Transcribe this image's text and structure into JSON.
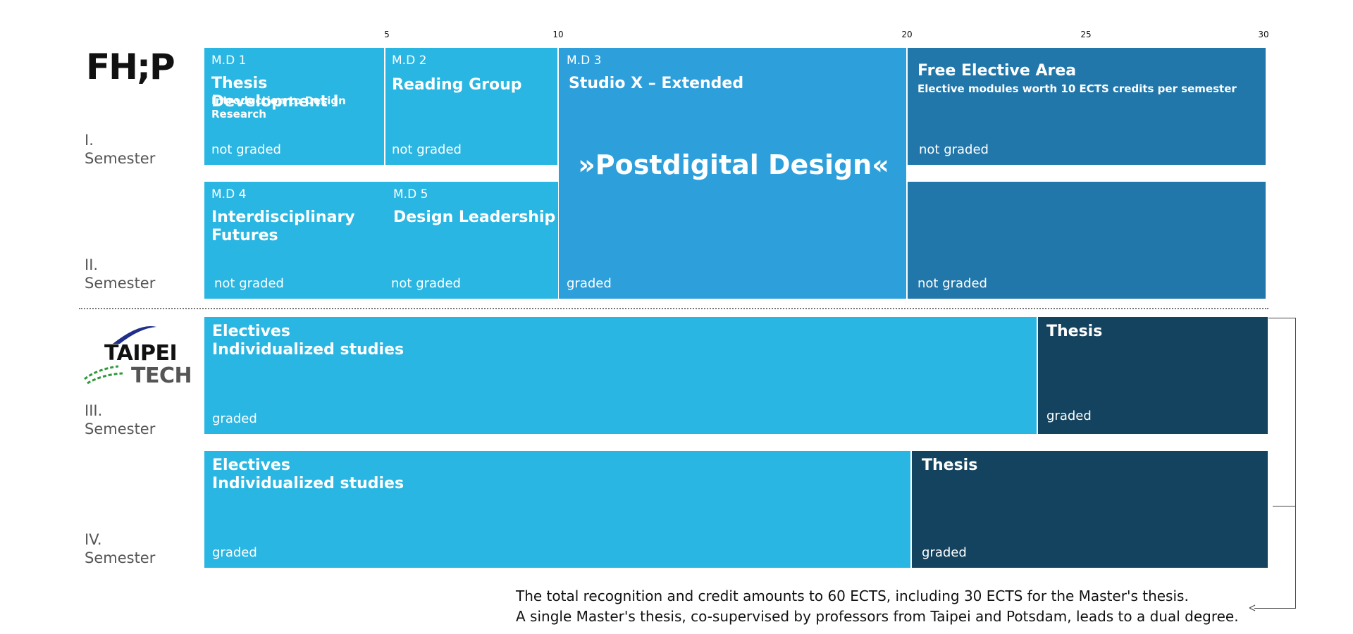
{
  "scale_ticks": [
    "5",
    "10",
    "20",
    "25",
    "30"
  ],
  "logos": {
    "fhp": "FH;P",
    "taipei_line1": "TAIPEI",
    "taipei_line2": "TECH"
  },
  "semesters": [
    {
      "numeral": "I.",
      "label": "Semester"
    },
    {
      "numeral": "II.",
      "label": "Semester"
    },
    {
      "numeral": "III.",
      "label": "Semester"
    },
    {
      "numeral": "IV.",
      "label": "Semester"
    }
  ],
  "modules": {
    "md1": {
      "code": "M.D 1",
      "title": "Thesis Development I",
      "subtitle": "Introduction to Design Research",
      "grading": "not graded"
    },
    "md2": {
      "code": "M.D 2",
      "title": "Reading Group",
      "grading": "not graded"
    },
    "md3": {
      "code": "M.D 3",
      "title": "Studio X – Extended",
      "highlight": "»Postdigital Design«",
      "grading": "graded"
    },
    "free_elective": {
      "title": "Free Elective Area",
      "subtitle": "Elective modules worth 10 ECTS credits per semester",
      "grading_s1": "not graded",
      "grading_s2": "not graded"
    },
    "md4": {
      "code": "M.D 4",
      "title": "Interdisciplinary Futures",
      "grading": "not graded"
    },
    "md5": {
      "code": "M.D 5",
      "title": "Design Leadership",
      "grading": "not graded"
    },
    "s3_electives": {
      "title_line1": "Electives",
      "title_line2": "Individualized studies",
      "grading": "graded"
    },
    "s3_thesis": {
      "title": "Thesis",
      "grading": "graded"
    },
    "s4_electives": {
      "title_line1": "Electives",
      "title_line2": "Individualized studies",
      "grading": "graded"
    },
    "s4_thesis": {
      "title": "Thesis",
      "grading": "graded"
    }
  },
  "colors": {
    "light_blue": "#29b6e2",
    "mid_blue": "#2d9fdb",
    "steel_blue": "#2277aa",
    "dark_navy": "#13435f"
  },
  "footnote": {
    "line1": "The total recognition and credit amounts to 60 ECTS, including 30 ECTS for the Master's thesis.",
    "line2": "A single Master's thesis, co-supervised by professors from Taipei and Potsdam, leads to a dual degree."
  }
}
